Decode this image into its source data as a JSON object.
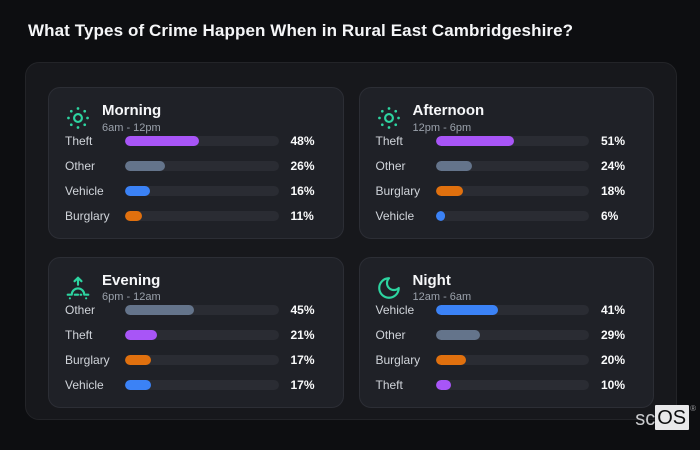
{
  "page_title": "What Types of Crime Happen When in Rural East Cambridgeshire?",
  "brand": {
    "prefix": "sc",
    "suffix": "OS",
    "registered": "®"
  },
  "colors": {
    "accent_icon": "#2dd4a0",
    "theft": "#a855f7",
    "other": "#64748b",
    "vehicle": "#3b82f6",
    "burglary": "#e0700e",
    "track": "#2a2c33"
  },
  "chart_data": [
    {
      "type": "bar",
      "title": "Morning",
      "subtitle": "6am - 12pm",
      "icon": "sun-icon",
      "unit": "%",
      "xlim": [
        0,
        100
      ],
      "categories": [
        "Theft",
        "Other",
        "Vehicle",
        "Burglary"
      ],
      "values": [
        48,
        26,
        16,
        11
      ],
      "bar_colors": [
        "#a855f7",
        "#64748b",
        "#3b82f6",
        "#e0700e"
      ]
    },
    {
      "type": "bar",
      "title": "Afternoon",
      "subtitle": "12pm - 6pm",
      "icon": "sun-icon",
      "unit": "%",
      "xlim": [
        0,
        100
      ],
      "categories": [
        "Theft",
        "Other",
        "Burglary",
        "Vehicle"
      ],
      "values": [
        51,
        24,
        18,
        6
      ],
      "bar_colors": [
        "#a855f7",
        "#64748b",
        "#e0700e",
        "#3b82f6"
      ]
    },
    {
      "type": "bar",
      "title": "Evening",
      "subtitle": "6pm - 12am",
      "icon": "sunrise-icon",
      "unit": "%",
      "xlim": [
        0,
        100
      ],
      "categories": [
        "Other",
        "Theft",
        "Burglary",
        "Vehicle"
      ],
      "values": [
        45,
        21,
        17,
        17
      ],
      "bar_colors": [
        "#64748b",
        "#a855f7",
        "#e0700e",
        "#3b82f6"
      ]
    },
    {
      "type": "bar",
      "title": "Night",
      "subtitle": "12am - 6am",
      "icon": "moon-icon",
      "unit": "%",
      "xlim": [
        0,
        100
      ],
      "categories": [
        "Vehicle",
        "Other",
        "Burglary",
        "Theft"
      ],
      "values": [
        41,
        29,
        20,
        10
      ],
      "bar_colors": [
        "#3b82f6",
        "#64748b",
        "#e0700e",
        "#a855f7"
      ]
    }
  ]
}
